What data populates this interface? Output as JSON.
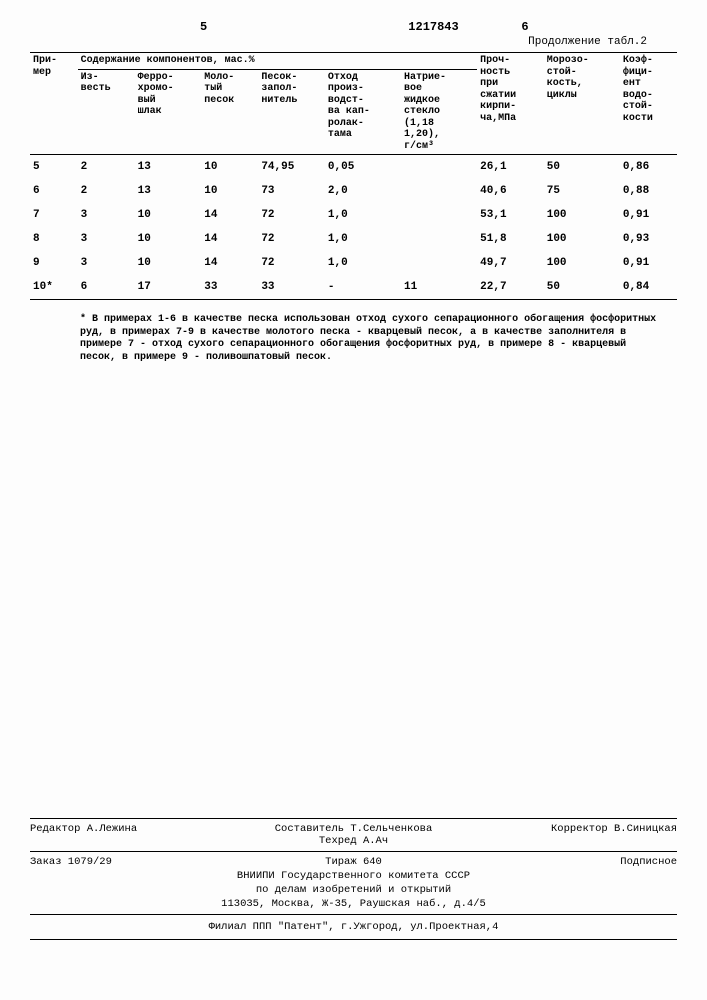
{
  "header": {
    "colnum_left": "5",
    "patent_no": "1217843",
    "colnum_right": "6",
    "continuation": "Продолжение табл.2"
  },
  "table": {
    "columns": {
      "primer": "При-\nмер",
      "group": "Содержание   компонентов,  мас.%",
      "izvest": "Из-\nвесть",
      "ferro": "Ферро-\nхромо-\nвый\nшлак",
      "molotyj": "Моло-\nтый\nпесок",
      "pesok": "Песок-\nзапол-\nнитель",
      "othod": "Отход\nпроиз-\nводст-\nва кап-\nролак-\nтама",
      "natr": "Натрие-\nвое\nжидкое\nстекло\n(1,18\n1,20),\nг/см³",
      "prochnost": "Проч-\nность\nпри\nсжатии\nкирпи-\nча,МПа",
      "moroz": "Морозо-\nстой-\nкость,\nциклы",
      "koef": "Коэф-\nфици-\nент\nводо-\nстой-\nкости"
    },
    "rows": [
      {
        "n": "5",
        "iz": "2",
        "fe": "13",
        "mo": "10",
        "pe": "74,95",
        "ot": "0,05",
        "na": "",
        "pr": "26,1",
        "mz": "50",
        "ko": "0,86"
      },
      {
        "n": "6",
        "iz": "2",
        "fe": "13",
        "mo": "10",
        "pe": "73",
        "ot": "2,0",
        "na": "",
        "pr": "40,6",
        "mz": "75",
        "ko": "0,88"
      },
      {
        "n": "7",
        "iz": "3",
        "fe": "10",
        "mo": "14",
        "pe": "72",
        "ot": "1,0",
        "na": "",
        "pr": "53,1",
        "mz": "100",
        "ko": "0,91"
      },
      {
        "n": "8",
        "iz": "3",
        "fe": "10",
        "mo": "14",
        "pe": "72",
        "ot": "1,0",
        "na": "",
        "pr": "51,8",
        "mz": "100",
        "ko": "0,93"
      },
      {
        "n": "9",
        "iz": "3",
        "fe": "10",
        "mo": "14",
        "pe": "72",
        "ot": "1,0",
        "na": "",
        "pr": "49,7",
        "mz": "100",
        "ko": "0,91"
      },
      {
        "n": "10*",
        "iz": "6",
        "fe": "17",
        "mo": "33",
        "pe": "33",
        "ot": "-",
        "na": "11",
        "pr": "22,7",
        "mz": "50",
        "ko": "0,84"
      }
    ]
  },
  "footnote": "* В примерах 1-6 в качестве песка использован отход сухого сепарационного обогащения фосфоритных руд, в примерах 7-9 в качестве молотого песка - кварцевый песок, а в качестве заполнителя в примере 7 - отход сухого сепарационного обогащения фосфоритных руд, в примере 8 - кварцевый песок, в примере 9 - поливошпатовый песок.",
  "colophon": {
    "editor": "Редактор А.Лежина",
    "compiler": "Составитель Т.Сельченкова",
    "tehred": "Техред А.Ач",
    "corrector": "Корректор В.Синицкая",
    "order": "Заказ 1079/29",
    "tirazh": "Тираж 640",
    "subscribe": "Подписное",
    "org1": "ВНИИПИ Государственного комитета СССР",
    "org2": "по делам изобретений и открытий",
    "addr": "113035, Москва, Ж-35, Раушская наб., д.4/5",
    "filial": "Филиал ППП \"Патент\", г.Ужгород, ул.Проектная,4"
  }
}
